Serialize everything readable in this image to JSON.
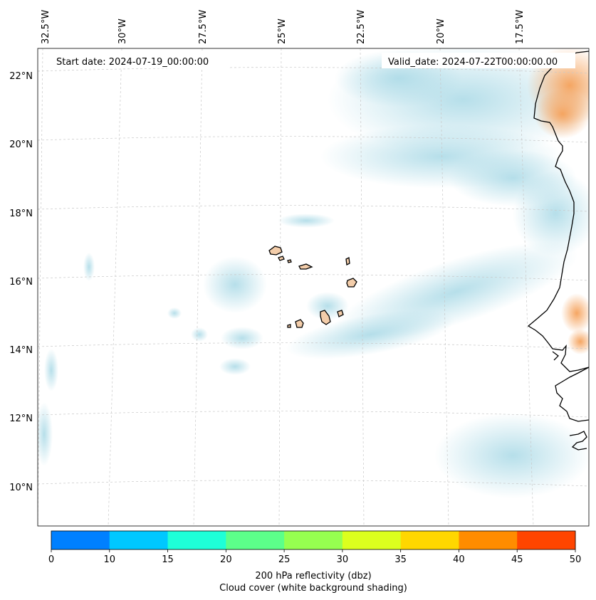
{
  "map": {
    "start_date": "Start date: 2024-07-19_00:00:00",
    "valid_date": "Valid_date: 2024-07-22T00:00:00.00",
    "lon_labels": [
      "32.5°W",
      "30°W",
      "27.5°W",
      "25°W",
      "22.5°W",
      "20°W",
      "17.5°W"
    ],
    "lat_labels": [
      "22°N",
      "20°N",
      "18°N",
      "16°N",
      "14°N",
      "12°N",
      "10°N"
    ]
  },
  "colorbar": {
    "ticks": [
      "0",
      "10",
      "15",
      "20",
      "25",
      "30",
      "35",
      "40",
      "45",
      "50"
    ],
    "colors": [
      "#0080ff",
      "#00c8ff",
      "#1effd8",
      "#5cff8a",
      "#96ff50",
      "#dcff1e",
      "#ffd700",
      "#ff8c00",
      "#ff4500"
    ],
    "label_line1": "200 hPa reflectivity (dbz)",
    "label_line2": "Cloud cover (white background shading)"
  }
}
